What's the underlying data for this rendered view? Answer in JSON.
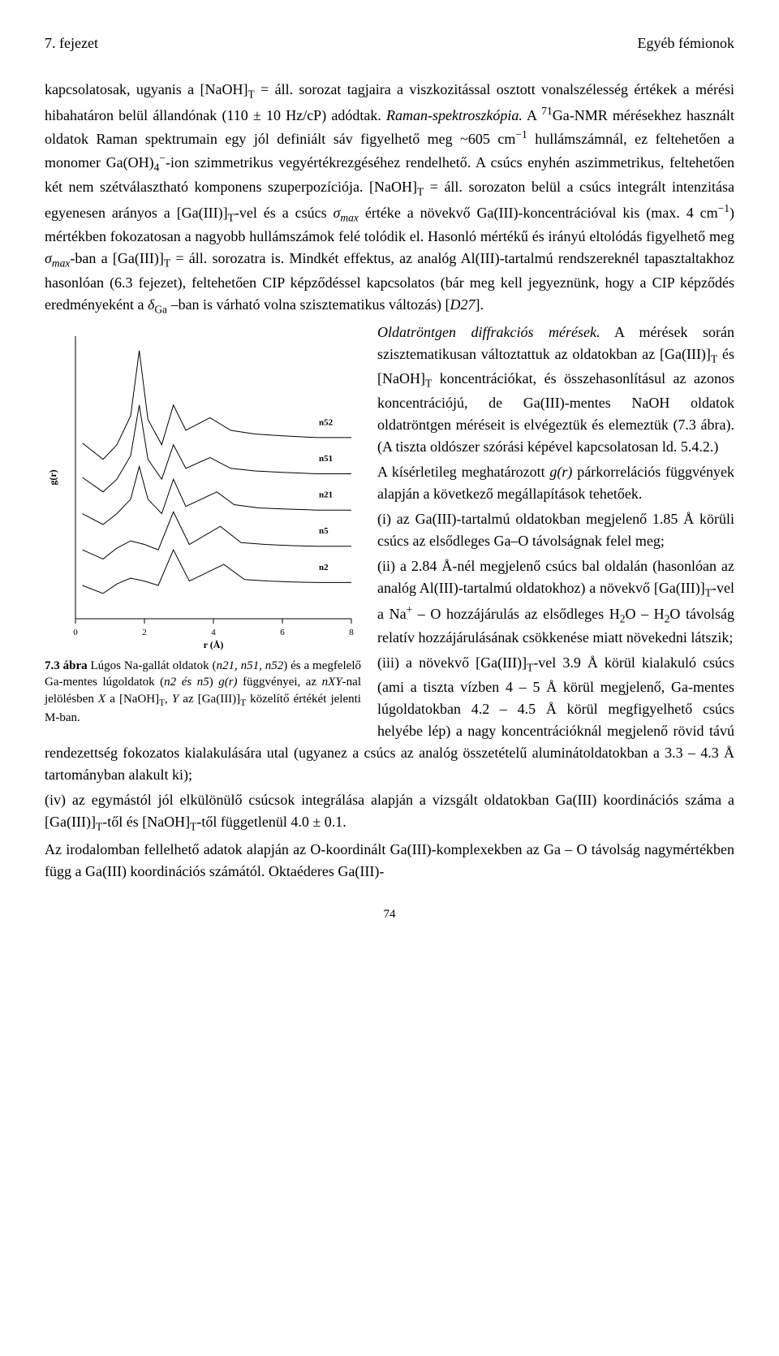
{
  "header": {
    "left": "7. fejezet",
    "right": "Egyéb fémionok"
  },
  "paragraph1_html": "kapcsolatosak, ugyanis a [NaOH]<span class='sub'>T</span> = áll. sorozat tagjaira a viszkozitással osztott vonalszélesség értékek a mérési hibahatáron belül állandónak (110 ± 10 Hz/cP) adódtak. <span class='italic'>Raman-spektroszkópia.</span> A <span class='sup'>71</span>Ga-NMR mérésekhez használt oldatok Raman spektrumain egy jól definiált sáv figyelhető meg ~605 cm<span class='sup'>−1</span> hullámszámnál, ez feltehetően a monomer Ga(OH)<span class='sub'>4</span><span class='sup'>−</span>-ion szimmetrikus vegyértékrezgéséhez rendelhető. A csúcs enyhén aszimmetrikus, feltehetően két nem szétválasztható komponens szuperpozíciója. [NaOH]<span class='sub'>T</span> = áll. sorozaton belül a csúcs integrált intenzitása egyenesen arányos a [Ga(III)]<span class='sub'>T</span>-vel és a csúcs <span class='italic'>σ<span class='sub'>max</span></span> értéke a növekvő Ga(III)-koncentrációval kis (max. 4 cm<span class='sup'>−1</span>) mértékben fokozatosan a nagyobb hullámszámok felé tolódik el. Hasonló mértékű és irányú eltolódás figyelhető meg <span class='italic'>σ<span class='sub'>max</span></span>-ban a [Ga(III)]<span class='sub'>T</span> = áll. sorozatra is. Mindkét effektus, az analóg Al(III)-tartalmú rendszereknél tapasztaltakhoz hasonlóan (6.3 fejezet), feltehetően CIP képződéssel kapcsolatos (bár meg kell jegyeznünk, hogy a CIP képződés eredményeként a <span class='italic'>δ</span><span class='sub'>Ga</span> –ban is várható volna szisztematikus változás) [<span class='italic'>D27</span>].",
  "paragraph2_html": "<span class='italic'>Oldatröntgen diffrakciós mérések.</span> A mérések során szisztematikusan változtattuk az oldatokban az [Ga(III)]<span class='sub'>T</span> és [NaOH]<span class='sub'>T</span> koncentrációkat, és összehasonlításul az azonos koncentrációjú, de Ga(III)-mentes NaOH oldatok oldatröntgen méréseit is elvégeztük és elemeztük (7.3 ábra). (A tiszta oldószer szórási képével kapcsolatosan ld. 5.4.2.)",
  "paragraph3_html": "A kísérletileg meghatározott <span class='italic'>g(r)</span> párkorrelációs függvények alapján a következő megállapítások tehetőek.",
  "paragraph4_html": "(i) az Ga(III)-tartalmú oldatokban megjelenő 1.85 Å körüli csúcs az elsődleges Ga–O távolságnak felel meg;",
  "paragraph5_html": "(ii) a 2.84 Å-nél megjelenő csúcs bal oldalán (hasonlóan az analóg Al(III)-tartalmú oldatokhoz) a növekvő [Ga(III)]<span class='sub'>T</span>-vel a Na<span class='sup'>+</span> – O hozzájárulás az elsődleges H<span class='sub'>2</span>O – H<span class='sub'>2</span>O távolság relatív hozzájárulásának csökkenése miatt növekedni látszik;",
  "paragraph6_html": "(iii) a növekvő [Ga(III)]<span class='sub'>T</span>-vel 3.9 Å körül kialakuló csúcs (ami a tiszta vízben 4 – 5 Å körül megjelenő, Ga-mentes lúgoldatokban 4.2 – 4.5 Å körül megfigyelhető csúcs helyébe lép) a nagy koncentrációknál megjelenő rövid távú rendezettség fokozatos kialakulására utal (ugyanez a csúcs az analóg összetételű aluminátoldatokban a 3.3 – 4.3 Å tartományban alakult ki);",
  "paragraph7_html": "(iv) az egymástól jól elkülönülő csúcsok integrálása alapján a vizsgált oldatokban Ga(III) koordinációs száma a [Ga(III)]<span class='sub'>T</span>-től és [NaOH]<span class='sub'>T</span>-től függetlenül 4.0 ± 0.1.",
  "paragraph8_html": "Az irodalomban fellelhető adatok alapján az O-koordinált Ga(III)-komplexekben az Ga – O távolság nagymértékben függ a Ga(III) koordinációs számától. Oktaéderes Ga(III)-",
  "figure": {
    "type": "line",
    "xlabel": "r (Å)",
    "ylabel": "g(r)",
    "xlim": [
      0,
      8
    ],
    "xticks": [
      0,
      2,
      4,
      6,
      8
    ],
    "label_fontsize": 12,
    "tick_fontsize": 11,
    "line_color": "#000000",
    "line_width": 1,
    "axis_color": "#000000",
    "axis_width": 1,
    "background_color": "#ffffff",
    "series_labels": [
      "n52",
      "n51",
      "n21",
      "n5",
      "n2"
    ],
    "series_label_fontsize": 11,
    "series": {
      "n52": {
        "x": [
          0.2,
          0.8,
          1.2,
          1.6,
          1.85,
          2.1,
          2.5,
          2.84,
          3.2,
          3.9,
          4.5,
          5.2,
          6.0,
          7.0,
          8.0
        ],
        "y": [
          -0.15,
          -0.6,
          -0.2,
          0.6,
          2.4,
          0.5,
          -0.2,
          0.9,
          0.2,
          0.55,
          0.2,
          0.1,
          0.05,
          0.0,
          0.0
        ]
      },
      "n51": {
        "x": [
          0.2,
          0.8,
          1.2,
          1.6,
          1.85,
          2.1,
          2.5,
          2.84,
          3.2,
          3.9,
          4.5,
          5.2,
          6.0,
          7.0,
          8.0
        ],
        "y": [
          -0.1,
          -0.5,
          -0.15,
          0.5,
          1.9,
          0.4,
          -0.15,
          0.8,
          0.15,
          0.45,
          0.15,
          0.08,
          0.04,
          0.0,
          0.0
        ]
      },
      "n21": {
        "x": [
          0.2,
          0.8,
          1.2,
          1.6,
          1.85,
          2.1,
          2.5,
          2.84,
          3.2,
          4.1,
          4.6,
          5.3,
          6.0,
          7.0,
          8.0
        ],
        "y": [
          -0.1,
          -0.4,
          -0.1,
          0.3,
          1.2,
          0.3,
          -0.1,
          0.85,
          0.1,
          0.5,
          0.15,
          0.06,
          0.03,
          0.0,
          0.0
        ]
      },
      "n5": {
        "x": [
          0.2,
          0.8,
          1.2,
          1.6,
          2.0,
          2.4,
          2.84,
          3.3,
          4.2,
          4.8,
          5.5,
          6.2,
          7.0,
          8.0
        ],
        "y": [
          -0.1,
          -0.35,
          -0.05,
          0.15,
          0.05,
          -0.1,
          0.95,
          0.05,
          0.55,
          0.1,
          0.05,
          0.02,
          0.0,
          0.0
        ]
      },
      "n2": {
        "x": [
          0.2,
          0.8,
          1.2,
          1.6,
          2.0,
          2.4,
          2.84,
          3.3,
          4.3,
          4.9,
          5.6,
          6.3,
          7.0,
          8.0
        ],
        "y": [
          -0.08,
          -0.3,
          -0.04,
          0.12,
          0.04,
          -0.08,
          0.9,
          0.04,
          0.5,
          0.08,
          0.04,
          0.015,
          0.0,
          0.0
        ]
      }
    },
    "series_offsets": {
      "n52": 4.0,
      "n51": 3.0,
      "n21": 2.0,
      "n5": 1.0,
      "n2": 0.0
    },
    "y_display_min": -1.0,
    "y_display_max": 6.8
  },
  "caption_html": "<span class='bold'>7.3 ábra</span> Lúgos Na-gallát oldatok (<span class='italic'>n21, n51, n52</span>) és a megfelelő Ga-mentes lúgoldatok (<span class='italic'>n2 és n5</span>) <span class='italic'>g(r)</span> függvényei, az <span class='italic'>nXY</span>-nal jelölésben <span class='italic'>X</span> a [NaOH]<span class='sub'>T</span>, <span class='italic'>Y</span> az [Ga(III)]<span class='sub'>T</span> közelítő értékét jelenti M-ban.",
  "page_number": "74"
}
